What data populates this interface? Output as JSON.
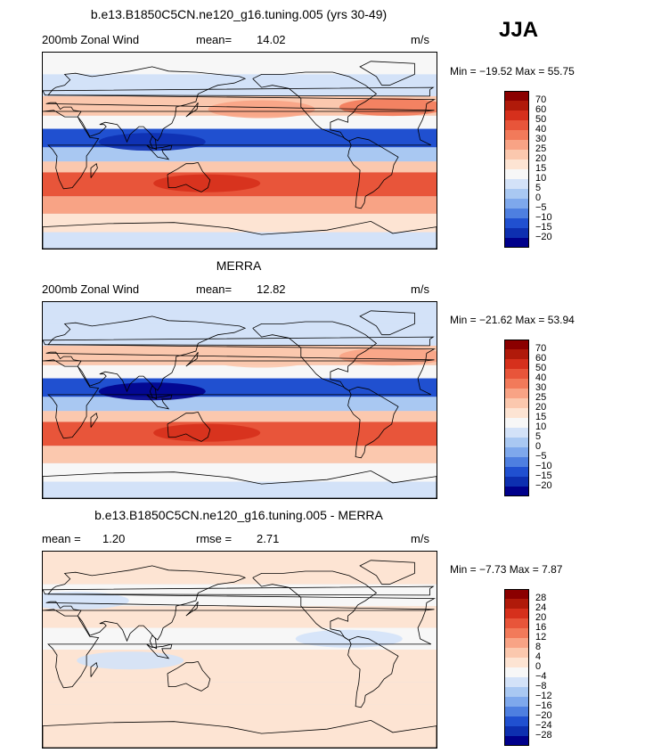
{
  "season_label": "JJA",
  "panels": [
    {
      "title": "b.e13.B1850C5CN.ne120_g16.tuning.005 (yrs 30-49)",
      "left_label": "200mb Zonal Wind",
      "middle_label": "mean=",
      "middle_value": "14.02",
      "units": "m/s",
      "min_label": "Min =",
      "min_value": "−19.52",
      "max_label": "Max =",
      "max_value": "55.75"
    },
    {
      "title": "MERRA",
      "left_label": "200mb Zonal Wind",
      "middle_label": "mean=",
      "middle_value": "12.82",
      "units": "m/s",
      "min_label": "Min =",
      "min_value": "−21.62",
      "max_label": "Max =",
      "max_value": "53.94"
    },
    {
      "title": "b.e13.B1850C5CN.ne120_g16.tuning.005 - MERRA",
      "left_label": "mean =",
      "left_value": "1.20",
      "middle_label": "rmse =",
      "middle_value": "2.71",
      "units": "m/s",
      "min_label": "Min =",
      "min_value": "−7.73",
      "max_label": "Max =",
      "max_value": "7.87"
    }
  ],
  "colorbars": [
    {
      "levels": [
        "70",
        "60",
        "50",
        "40",
        "30",
        "25",
        "20",
        "15",
        "10",
        "5",
        "0",
        "−5",
        "−10",
        "−15",
        "−20"
      ],
      "colors": [
        "#8b0000",
        "#b01a0a",
        "#d6301c",
        "#e8553a",
        "#f27a5a",
        "#f8a385",
        "#fbc8ae",
        "#fde4d3",
        "#f7f7f7",
        "#d3e2f8",
        "#a9c8f2",
        "#7ea8ec",
        "#4e7fe0",
        "#2050d0",
        "#0d2fb0",
        "#00008b"
      ]
    },
    {
      "levels": [
        "70",
        "60",
        "50",
        "40",
        "30",
        "25",
        "20",
        "15",
        "10",
        "5",
        "0",
        "−5",
        "−10",
        "−15",
        "−20"
      ],
      "colors": [
        "#8b0000",
        "#b01a0a",
        "#d6301c",
        "#e8553a",
        "#f27a5a",
        "#f8a385",
        "#fbc8ae",
        "#fde4d3",
        "#f7f7f7",
        "#d3e2f8",
        "#a9c8f2",
        "#7ea8ec",
        "#4e7fe0",
        "#2050d0",
        "#0d2fb0",
        "#00008b"
      ]
    },
    {
      "levels": [
        "28",
        "24",
        "20",
        "16",
        "12",
        "8",
        "4",
        "0",
        "−4",
        "−8",
        "−12",
        "−16",
        "−20",
        "−24",
        "−28"
      ],
      "colors": [
        "#8b0000",
        "#b01a0a",
        "#d6301c",
        "#e8553a",
        "#f27a5a",
        "#f8a385",
        "#fbc8ae",
        "#fde4d3",
        "#f7f7f7",
        "#d3e2f8",
        "#a9c8f2",
        "#7ea8ec",
        "#4e7fe0",
        "#2050d0",
        "#0d2fb0",
        "#00008b"
      ]
    }
  ],
  "chart_data": [
    {
      "type": "heatmap",
      "title": "b.e13.B1850C5CN.ne120_g16.tuning.005 (yrs 30-49)",
      "variable": "200mb Zonal Wind",
      "units": "m/s",
      "mean": 14.02,
      "min": -19.52,
      "max": 55.75,
      "contour_levels": [
        -20,
        -15,
        -10,
        -5,
        0,
        5,
        10,
        15,
        20,
        25,
        30,
        40,
        50,
        60,
        70
      ],
      "bands": [
        {
          "lat_start": 90,
          "lat_end": 70,
          "value": 10
        },
        {
          "lat_start": 70,
          "lat_end": 50,
          "value": 5
        },
        {
          "lat_start": 50,
          "lat_end": 32,
          "value": 20
        },
        {
          "lat_start": 32,
          "lat_end": 20,
          "value": 10
        },
        {
          "lat_start": 20,
          "lat_end": 3,
          "value": -12
        },
        {
          "lat_start": 3,
          "lat_end": -10,
          "value": 0
        },
        {
          "lat_start": -10,
          "lat_end": -20,
          "value": 20
        },
        {
          "lat_start": -20,
          "lat_end": -42,
          "value": 42
        },
        {
          "lat_start": -42,
          "lat_end": -58,
          "value": 25
        },
        {
          "lat_start": -58,
          "lat_end": -75,
          "value": 15
        },
        {
          "lat_start": -75,
          "lat_end": -90,
          "value": 5
        }
      ],
      "features": [
        {
          "lon": 100,
          "lat": 8,
          "value": -20
        },
        {
          "lon": 150,
          "lat": -30,
          "value": 50
        },
        {
          "lon": -40,
          "lat": 40,
          "value": 30
        },
        {
          "lon": -160,
          "lat": 38,
          "value": 25
        }
      ]
    },
    {
      "type": "heatmap",
      "title": "MERRA",
      "variable": "200mb Zonal Wind",
      "units": "m/s",
      "mean": 12.82,
      "min": -21.62,
      "max": 53.94,
      "contour_levels": [
        -20,
        -15,
        -10,
        -5,
        0,
        5,
        10,
        15,
        20,
        25,
        30,
        40,
        50,
        60,
        70
      ],
      "bands": [
        {
          "lat_start": 90,
          "lat_end": 70,
          "value": 5
        },
        {
          "lat_start": 70,
          "lat_end": 50,
          "value": 5
        },
        {
          "lat_start": 50,
          "lat_end": 32,
          "value": 20
        },
        {
          "lat_start": 32,
          "lat_end": 20,
          "value": 10
        },
        {
          "lat_start": 20,
          "lat_end": 3,
          "value": -12
        },
        {
          "lat_start": 3,
          "lat_end": -10,
          "value": 0
        },
        {
          "lat_start": -10,
          "lat_end": -20,
          "value": 20
        },
        {
          "lat_start": -20,
          "lat_end": -42,
          "value": 40
        },
        {
          "lat_start": -42,
          "lat_end": -58,
          "value": 22
        },
        {
          "lat_start": -58,
          "lat_end": -75,
          "value": 12
        },
        {
          "lat_start": -75,
          "lat_end": -90,
          "value": 5
        }
      ],
      "features": [
        {
          "lon": 100,
          "lat": 8,
          "value": -22
        },
        {
          "lon": 150,
          "lat": -30,
          "value": 50
        },
        {
          "lon": -40,
          "lat": 40,
          "value": 28
        },
        {
          "lon": -160,
          "lat": 38,
          "value": 22
        }
      ]
    },
    {
      "type": "heatmap",
      "title": "b.e13.B1850C5CN.ne120_g16.tuning.005 - MERRA",
      "units": "m/s",
      "mean": 1.2,
      "rmse": 2.71,
      "min": -7.73,
      "max": 7.87,
      "contour_levels": [
        -28,
        -24,
        -20,
        -16,
        -12,
        -8,
        -4,
        0,
        4,
        8,
        12,
        16,
        20,
        24,
        28
      ],
      "bands": [
        {
          "lat_start": 90,
          "lat_end": 60,
          "value": 2
        },
        {
          "lat_start": 60,
          "lat_end": 40,
          "value": -2
        },
        {
          "lat_start": 40,
          "lat_end": 20,
          "value": 2
        },
        {
          "lat_start": 20,
          "lat_end": 0,
          "value": -2
        },
        {
          "lat_start": 0,
          "lat_end": -30,
          "value": 2
        },
        {
          "lat_start": -30,
          "lat_end": -50,
          "value": 2
        },
        {
          "lat_start": -50,
          "lat_end": -90,
          "value": 2
        }
      ],
      "features": [
        {
          "lon": 80,
          "lat": -10,
          "value": -6
        },
        {
          "lon": -80,
          "lat": 10,
          "value": -6
        },
        {
          "lon": 30,
          "lat": 45,
          "value": -6
        }
      ]
    }
  ]
}
